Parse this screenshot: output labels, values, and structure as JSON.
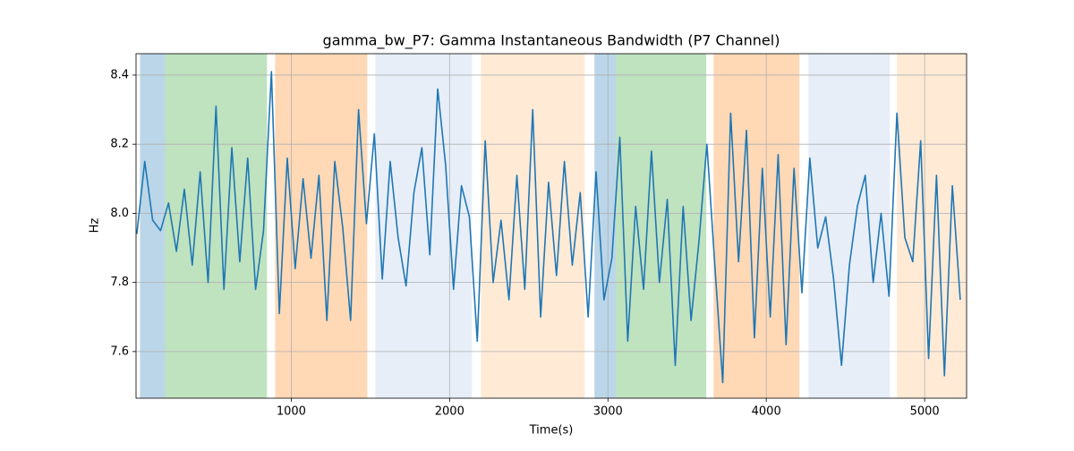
{
  "chart_data": {
    "type": "line",
    "title": "gamma_bw_P7: Gamma Instantaneous Bandwidth (P7 Channel)",
    "xlabel": "Time(s)",
    "ylabel": "Hz",
    "xlim": [
      20,
      5265
    ],
    "ylim": [
      7.465,
      8.462
    ],
    "xticks": [
      1000,
      2000,
      3000,
      4000,
      5000
    ],
    "yticks": [
      7.6,
      7.8,
      {
        "value": 8,
        "label": "8.0"
      },
      8.2,
      8.4
    ],
    "grid": true,
    "spans": [
      {
        "start": 45,
        "end": 203,
        "color": "rgba(31,119,180,0.3)"
      },
      {
        "start": 203,
        "end": 847,
        "color": "rgba(44,160,44,0.3)"
      },
      {
        "start": 898,
        "end": 1480,
        "color": "rgba(255,127,14,0.3)"
      },
      {
        "start": 1531,
        "end": 2141,
        "color": "rgba(174,199,232,0.3)"
      },
      {
        "start": 2198,
        "end": 2853,
        "color": "rgba(255,187,120,0.3)"
      },
      {
        "start": 2915,
        "end": 3051,
        "color": "rgba(31,119,180,0.3)"
      },
      {
        "start": 3051,
        "end": 3621,
        "color": "rgba(44,160,44,0.3)"
      },
      {
        "start": 3667,
        "end": 4209,
        "color": "rgba(255,127,14,0.3)"
      },
      {
        "start": 4266,
        "end": 4780,
        "color": "rgba(174,199,232,0.3)"
      },
      {
        "start": 4825,
        "end": 5265,
        "color": "rgba(255,187,120,0.3)"
      }
    ],
    "x": [
      25,
      75,
      125,
      175,
      225,
      275,
      325,
      375,
      425,
      475,
      525,
      575,
      625,
      675,
      725,
      775,
      825,
      875,
      925,
      975,
      1025,
      1075,
      1125,
      1175,
      1225,
      1275,
      1325,
      1375,
      1425,
      1475,
      1525,
      1575,
      1625,
      1675,
      1725,
      1775,
      1825,
      1875,
      1925,
      1975,
      2025,
      2075,
      2125,
      2175,
      2225,
      2275,
      2325,
      2375,
      2425,
      2475,
      2525,
      2575,
      2625,
      2675,
      2725,
      2775,
      2825,
      2875,
      2925,
      2975,
      3025,
      3075,
      3125,
      3175,
      3225,
      3275,
      3325,
      3375,
      3425,
      3475,
      3525,
      3575,
      3625,
      3675,
      3725,
      3775,
      3825,
      3875,
      3925,
      3975,
      4025,
      4075,
      4125,
      4175,
      4225,
      4275,
      4325,
      4375,
      4425,
      4475,
      4525,
      4575,
      4625,
      4675,
      4725,
      4775,
      4825,
      4875,
      4925,
      4975,
      5025,
      5075,
      5125,
      5175,
      5225
    ],
    "series": [
      {
        "color": "#1f77b4",
        "values": [
          7.94,
          8.15,
          7.98,
          7.95,
          8.03,
          7.89,
          8.07,
          7.85,
          8.12,
          7.8,
          8.31,
          7.78,
          8.19,
          7.86,
          8.16,
          7.78,
          7.95,
          8.41,
          7.71,
          8.16,
          7.84,
          8.1,
          7.87,
          8.11,
          7.69,
          8.15,
          7.96,
          7.69,
          8.3,
          7.97,
          8.23,
          7.81,
          8.15,
          7.93,
          7.79,
          8.06,
          8.19,
          7.88,
          8.36,
          8.14,
          7.78,
          8.08,
          7.99,
          7.63,
          8.21,
          7.8,
          7.98,
          7.75,
          8.11,
          7.78,
          8.3,
          7.7,
          8.09,
          7.82,
          8.15,
          7.85,
          8.06,
          7.7,
          8.12,
          7.75,
          7.87,
          8.22,
          7.63,
          8.02,
          7.78,
          8.18,
          7.8,
          8.04,
          7.56,
          8.02,
          7.69,
          7.92,
          8.2,
          7.85,
          7.51,
          8.29,
          7.86,
          8.24,
          7.64,
          8.13,
          7.7,
          8.17,
          7.62,
          8.13,
          7.77,
          8.16,
          7.9,
          7.99,
          7.81,
          7.56,
          7.85,
          8.02,
          8.11,
          7.8,
          8.0,
          7.76,
          8.29,
          7.93,
          7.86,
          8.21,
          7.58,
          8.11,
          7.53,
          8.08,
          7.75
        ]
      }
    ]
  }
}
